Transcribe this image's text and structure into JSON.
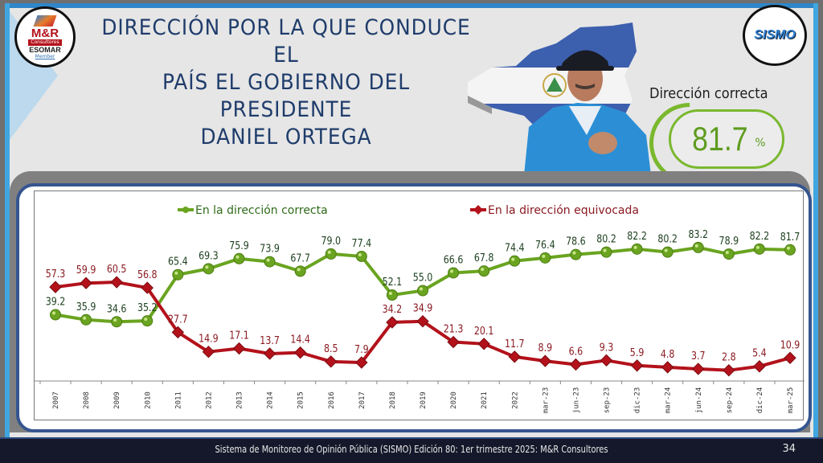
{
  "slide": {
    "title_lines": [
      "DIRECCIÓN POR LA QUE CONDUCE EL",
      "PAÍS EL GOBIERNO DEL PRESIDENTE",
      "DANIEL ORTEGA"
    ],
    "logo_left": {
      "line1": "M&R",
      "line2": "Consultores",
      "line3": "ESOMAR",
      "line4": "Member"
    },
    "logo_right": "SISMO",
    "highlight": {
      "label": "Dirección correcta",
      "value": "81.7",
      "unit": "%"
    },
    "footer": "Sistema de Monitoreo de Opinión Pública (SISMO) Edición 80: 1er trimestre 2025: M&R Consultores",
    "page_number": "34",
    "colors": {
      "correct": "#6aa420",
      "wrong": "#b3121b",
      "title": "#1f3c6b",
      "frame": "#35558f"
    }
  },
  "chart_data": {
    "type": "line",
    "title": "",
    "xlabel": "",
    "ylabel": "",
    "ylim": [
      0,
      100
    ],
    "grid": false,
    "legend_position": "top",
    "categories": [
      "2007",
      "2008",
      "2009",
      "2010",
      "2011",
      "2012",
      "2013",
      "2014",
      "2015",
      "2016",
      "2017",
      "2018",
      "2019",
      "2020",
      "2021",
      "2022",
      "mar-23",
      "jun-23",
      "sep-23",
      "dic-23",
      "mar-24",
      "jun-24",
      "sep-24",
      "dic-24",
      "mar-25"
    ],
    "series": [
      {
        "name": "En la dirección correcta",
        "color": "#6aa420",
        "label_color": "#1e4020",
        "marker": "circle",
        "values": [
          39.2,
          35.9,
          34.6,
          35.2,
          65.4,
          69.3,
          75.9,
          73.9,
          67.7,
          79.0,
          77.4,
          52.1,
          55.0,
          66.6,
          67.8,
          74.4,
          76.4,
          78.6,
          80.2,
          82.2,
          80.2,
          83.2,
          78.9,
          82.2,
          81.7
        ],
        "labels": [
          "39.2",
          "35.9",
          "34.6",
          "35.2",
          "65.4",
          "69.3",
          "75.9",
          "73.9",
          "67.7",
          "79.0",
          "77.4",
          "52.1",
          "55.0",
          "66.6",
          "67.8",
          "74.4",
          "76.4",
          "78.6",
          "80.2",
          "82.2",
          "80.2",
          "83.2",
          "78.9",
          "82.2",
          "81.7"
        ]
      },
      {
        "name": "En la dirección equivocada",
        "color": "#b3121b",
        "label_color": "#8a1a22",
        "marker": "diamond",
        "values": [
          57.3,
          59.9,
          60.5,
          56.8,
          27.7,
          14.9,
          17.1,
          13.7,
          14.4,
          8.5,
          7.9,
          34.2,
          34.9,
          21.3,
          20.1,
          11.7,
          8.9,
          6.6,
          9.3,
          5.9,
          4.8,
          3.7,
          2.8,
          5.4,
          10.9
        ],
        "labels": [
          "57.3",
          "59.9",
          "60.5",
          "56.8",
          "27.7",
          "14.9",
          "17.1",
          "13.7",
          "14.4",
          "8.5",
          "7.9",
          "34.2",
          "34.9",
          "21.3",
          "20.1",
          "11.7",
          "8.9",
          "6.6",
          "9.3",
          "5.9",
          "4.8",
          "3.7",
          "2.8",
          "5.4",
          "10.9"
        ]
      }
    ]
  }
}
